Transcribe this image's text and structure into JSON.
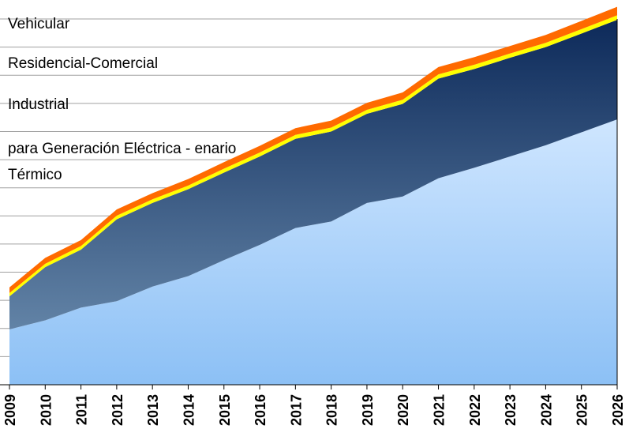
{
  "chart_data": {
    "type": "stacked_area",
    "categories": [
      "2009",
      "2010",
      "2011",
      "2012",
      "2013",
      "2014",
      "2015",
      "2016",
      "2017",
      "2018",
      "2019",
      "2020",
      "2021",
      "2022",
      "2023",
      "2024",
      "2025",
      "2026"
    ],
    "ylim": [
      0,
      13
    ],
    "yticks": [
      0,
      1,
      2,
      3,
      4,
      5,
      6,
      7,
      8,
      9,
      10,
      11,
      12,
      13
    ],
    "grid": true,
    "series": [
      {
        "name": "para Generación Eléctrica - enario Térmico",
        "color": "#cfe6ff",
        "gradient_to": "#8cc0f5",
        "values": [
          1.97,
          2.29,
          2.74,
          2.97,
          3.49,
          3.86,
          4.43,
          4.97,
          5.57,
          5.8,
          6.46,
          6.69,
          7.34,
          7.71,
          8.11,
          8.51,
          8.97,
          9.43
        ]
      },
      {
        "name": "Industrial",
        "color": "#0d2a5a",
        "gradient_to": "#6283a6",
        "values": [
          1.17,
          1.89,
          2.06,
          2.91,
          2.97,
          3.09,
          3.11,
          3.14,
          3.17,
          3.2,
          3.17,
          3.29,
          3.54,
          3.51,
          3.51,
          3.49,
          3.51,
          3.54
        ]
      },
      {
        "name": "Residencial-Comercial",
        "color": "#ffff00",
        "values": [
          0.12,
          0.12,
          0.13,
          0.13,
          0.13,
          0.13,
          0.14,
          0.14,
          0.14,
          0.14,
          0.14,
          0.15,
          0.15,
          0.15,
          0.15,
          0.15,
          0.16,
          0.16
        ]
      },
      {
        "name": "Vehicular",
        "color": "#ff6a00",
        "values": [
          0.2,
          0.21,
          0.21,
          0.22,
          0.22,
          0.23,
          0.23,
          0.24,
          0.24,
          0.25,
          0.25,
          0.26,
          0.26,
          0.27,
          0.27,
          0.28,
          0.29,
          0.3
        ]
      }
    ]
  }
}
